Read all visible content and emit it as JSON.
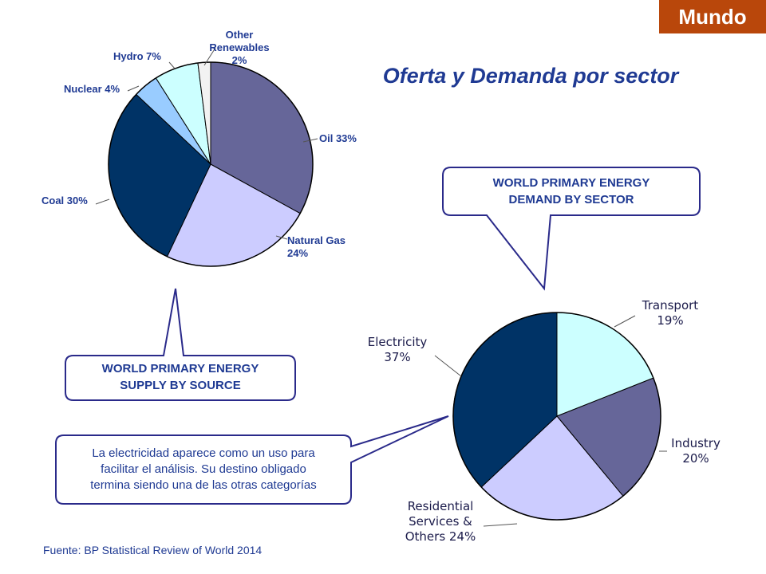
{
  "badge": "Mundo",
  "title": "Oferta y Demanda por sector",
  "source": "Fuente: BP Statistical Review of World 2014",
  "supply_callout": [
    "WORLD PRIMARY ENERGY",
    "SUPPLY BY SOURCE"
  ],
  "demand_callout": [
    "WORLD PRIMARY ENERGY",
    "DEMAND BY SECTOR"
  ],
  "note": [
    "La electricidad aparece como un uso para",
    "facilitar el análisis. Su destino obligado",
    "termina siendo una de las otras categorías"
  ],
  "chart_data": [
    {
      "type": "pie",
      "title": "WORLD PRIMARY ENERGY SUPPLY BY SOURCE",
      "slices": [
        {
          "label": [
            "Oil 33%"
          ],
          "value": 33,
          "color": "#666699"
        },
        {
          "label": [
            "Natural Gas",
            "24%"
          ],
          "value": 24,
          "color": "#ccccff"
        },
        {
          "label": [
            "Coal 30%"
          ],
          "value": 30,
          "color": "#003366"
        },
        {
          "label": [
            "Nuclear 4%"
          ],
          "value": 4,
          "color": "#99ccff"
        },
        {
          "label": [
            "Hydro 7%"
          ],
          "value": 7,
          "color": "#ccffff"
        },
        {
          "label": [
            "Other",
            "Renewables",
            "2%"
          ],
          "value": 2,
          "color": "#f2f2f2"
        }
      ]
    },
    {
      "type": "pie",
      "title": "WORLD PRIMARY ENERGY DEMAND BY SECTOR",
      "slices": [
        {
          "label": [
            "Transport",
            "19%"
          ],
          "value": 19,
          "color": "#ccffff"
        },
        {
          "label": [
            "Industry",
            "20%"
          ],
          "value": 20,
          "color": "#666699"
        },
        {
          "label": [
            "Residential",
            "Services &",
            "Others 24%"
          ],
          "value": 24,
          "color": "#ccccff"
        },
        {
          "label": [
            "Electricity",
            "37%"
          ],
          "value": 37,
          "color": "#003366"
        }
      ]
    }
  ]
}
